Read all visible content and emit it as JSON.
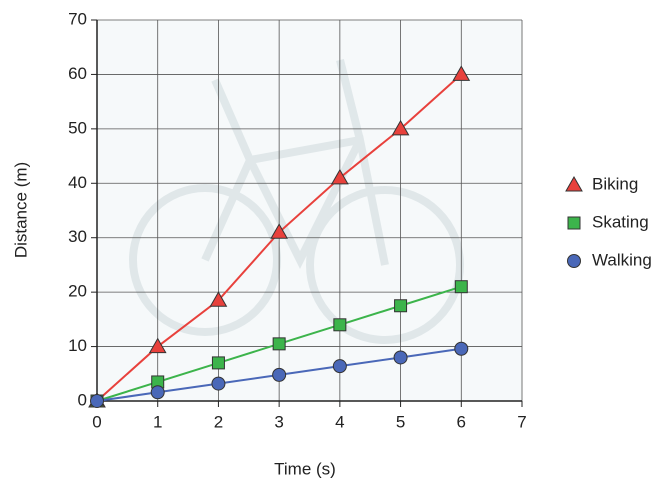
{
  "chart_data": {
    "type": "line",
    "x_label": "Time (s)",
    "y_label": "Distance (m)",
    "x": [
      0,
      1,
      2,
      3,
      4,
      5,
      6
    ],
    "series": [
      {
        "name": "Biking",
        "color": "#e8413c",
        "marker": "triangle",
        "values": [
          0,
          10,
          18.5,
          31,
          41,
          50,
          60
        ]
      },
      {
        "name": "Skating",
        "color": "#3cb44b",
        "marker": "square",
        "values": [
          0,
          3.5,
          7,
          10.5,
          14,
          17.5,
          21
        ]
      },
      {
        "name": "Walking",
        "color": "#4a68b8",
        "marker": "circle",
        "values": [
          0,
          1.6,
          3.2,
          4.8,
          6.4,
          8,
          9.6
        ]
      }
    ],
    "xlim": [
      0,
      7
    ],
    "xticks": [
      0,
      1,
      2,
      3,
      4,
      5,
      6,
      7
    ],
    "ylim": [
      0,
      70
    ],
    "yticks": [
      0,
      10,
      20,
      30,
      40,
      50,
      60,
      70
    ],
    "grid": true,
    "legend": "right"
  }
}
